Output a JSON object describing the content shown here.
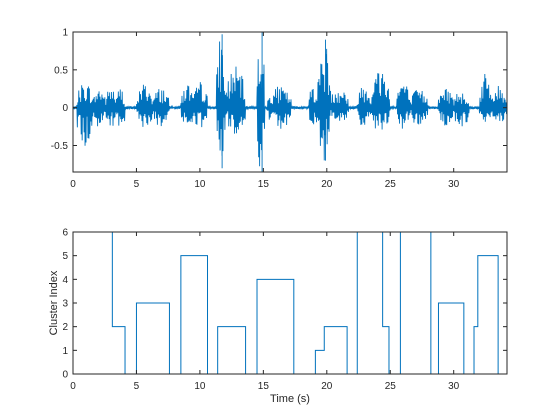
{
  "chart_data": [
    {
      "type": "line",
      "name": "waveform",
      "xlabel": "",
      "ylabel": "",
      "xlim": [
        0,
        34.2
      ],
      "ylim": [
        -0.85,
        1
      ],
      "xticks": [
        0,
        5,
        10,
        15,
        20,
        25,
        30
      ],
      "yticks": [
        -0.5,
        0,
        0.5,
        1
      ],
      "xtick_labels": [
        "0",
        "5",
        "10",
        "15",
        "20",
        "25",
        "30"
      ],
      "ytick_labels": [
        "-0.5",
        "0",
        "0.5",
        "1"
      ],
      "line_color": "#0072BD",
      "grid": false,
      "segments": [
        {
          "start": 0.3,
          "end": 1.6,
          "pos": 0.35,
          "neg": 0.55
        },
        {
          "start": 1.6,
          "end": 2.6,
          "pos": 0.28,
          "neg": 0.3
        },
        {
          "start": 2.6,
          "end": 3.4,
          "pos": 0.3,
          "neg": 0.32
        },
        {
          "start": 3.4,
          "end": 4.1,
          "pos": 0.28,
          "neg": 0.35
        },
        {
          "start": 5.0,
          "end": 6.3,
          "pos": 0.33,
          "neg": 0.28
        },
        {
          "start": 6.3,
          "end": 7.6,
          "pos": 0.28,
          "neg": 0.3
        },
        {
          "start": 8.5,
          "end": 9.5,
          "pos": 0.33,
          "neg": 0.3
        },
        {
          "start": 9.5,
          "end": 10.6,
          "pos": 0.35,
          "neg": 0.3
        },
        {
          "start": 11.3,
          "end": 12.0,
          "pos": 0.97,
          "neg": 0.8
        },
        {
          "start": 12.0,
          "end": 13.6,
          "pos": 0.55,
          "neg": 0.35
        },
        {
          "start": 14.5,
          "end": 15.1,
          "pos": 1.0,
          "neg": 0.85
        },
        {
          "start": 15.3,
          "end": 17.2,
          "pos": 0.28,
          "neg": 0.3
        },
        {
          "start": 18.6,
          "end": 19.3,
          "pos": 0.33,
          "neg": 0.28
        },
        {
          "start": 19.3,
          "end": 20.3,
          "pos": 0.9,
          "neg": 0.7
        },
        {
          "start": 20.3,
          "end": 21.7,
          "pos": 0.3,
          "neg": 0.22
        },
        {
          "start": 22.4,
          "end": 23.5,
          "pos": 0.35,
          "neg": 0.28
        },
        {
          "start": 23.5,
          "end": 25.0,
          "pos": 0.55,
          "neg": 0.35
        },
        {
          "start": 25.5,
          "end": 26.5,
          "pos": 0.4,
          "neg": 0.3
        },
        {
          "start": 26.5,
          "end": 28.0,
          "pos": 0.25,
          "neg": 0.25
        },
        {
          "start": 28.8,
          "end": 30.0,
          "pos": 0.28,
          "neg": 0.25
        },
        {
          "start": 30.0,
          "end": 31.2,
          "pos": 0.25,
          "neg": 0.3
        },
        {
          "start": 32.0,
          "end": 33.0,
          "pos": 0.45,
          "neg": 0.2
        },
        {
          "start": 33.0,
          "end": 34.2,
          "pos": 0.3,
          "neg": 0.2
        }
      ]
    },
    {
      "type": "line",
      "name": "cluster-index",
      "xlabel": "Time (s)",
      "ylabel": "Cluster Index",
      "xlim": [
        0,
        34.2
      ],
      "ylim": [
        0,
        6
      ],
      "xticks": [
        0,
        5,
        10,
        15,
        20,
        25,
        30
      ],
      "yticks": [
        0,
        1,
        2,
        3,
        4,
        5,
        6
      ],
      "xtick_labels": [
        "0",
        "5",
        "10",
        "15",
        "20",
        "25",
        "30"
      ],
      "ytick_labels": [
        "0",
        "1",
        "2",
        "3",
        "4",
        "5",
        "6"
      ],
      "line_color": "#0072BD",
      "grid": false,
      "steps": [
        [
          0,
          6
        ],
        [
          3.1,
          2
        ],
        [
          4.1,
          0
        ],
        [
          5.0,
          3
        ],
        [
          7.6,
          0
        ],
        [
          8.5,
          5
        ],
        [
          10.6,
          0
        ],
        [
          11.4,
          2
        ],
        [
          13.6,
          0
        ],
        [
          14.5,
          4
        ],
        [
          17.4,
          0
        ],
        [
          19.1,
          1
        ],
        [
          19.8,
          2
        ],
        [
          21.6,
          0
        ],
        [
          22.4,
          6
        ],
        [
          24.4,
          2
        ],
        [
          24.9,
          0
        ],
        [
          25.8,
          6
        ],
        [
          28.2,
          0
        ],
        [
          28.8,
          3
        ],
        [
          30.8,
          0
        ],
        [
          31.6,
          2
        ],
        [
          31.9,
          5
        ],
        [
          33.5,
          0
        ],
        [
          34.2,
          0
        ]
      ]
    }
  ]
}
